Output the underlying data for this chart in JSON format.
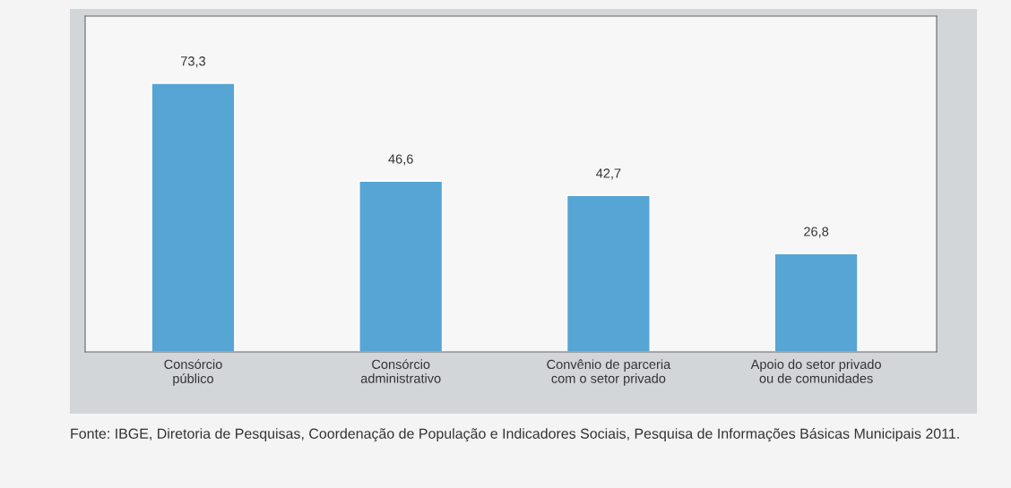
{
  "chart_data": {
    "type": "bar",
    "categories": [
      "Consórcio\npúblico",
      "Consórcio\nadministrativo",
      "Convênio de parceria\ncom o setor privado",
      "Apoio do setor privado\nou de comunidades"
    ],
    "values": [
      73.3,
      46.6,
      42.7,
      26.8
    ],
    "color": "#56a5d4",
    "value_labels": [
      "73,3",
      "46,6",
      "42,7",
      "26,8"
    ],
    "grid": false,
    "legend": false,
    "annotations": [
      "Fonte: IBGE, Diretoria de Pesquisas, Coordenação de População e Indicadores Sociais, Pesquisa de Informações Básicas Municipais 2011."
    ]
  }
}
